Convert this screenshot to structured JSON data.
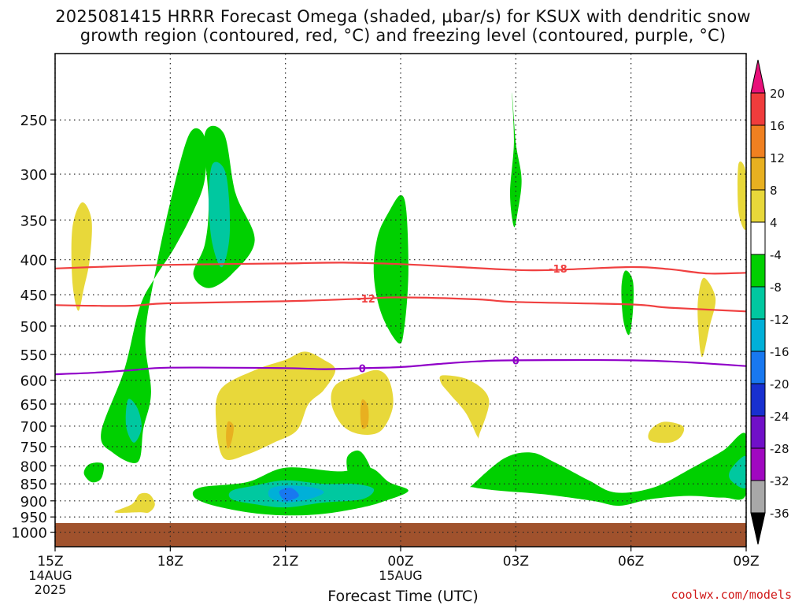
{
  "title_line1": "2025081415 HRRR Forecast Omega (shaded, μbar/s) for KSUX with dendritic snow",
  "title_line2": "growth region (contoured, red, °C) and freezing level (contoured, purple, °C)",
  "credit": "coolwx.com/models",
  "chart_data": {
    "type": "heatmap",
    "xlabel": "Forecast Time (UTC)",
    "x_ticks": [
      {
        "x": 15,
        "label": "15Z",
        "sub": [
          "14AUG",
          "2025"
        ]
      },
      {
        "x": 18,
        "label": "18Z",
        "sub": []
      },
      {
        "x": 21,
        "label": "21Z",
        "sub": []
      },
      {
        "x": 24,
        "label": "00Z",
        "sub": [
          "15AUG"
        ]
      },
      {
        "x": 27,
        "label": "03Z",
        "sub": []
      },
      {
        "x": 30,
        "label": "06Z",
        "sub": []
      },
      {
        "x": 33,
        "label": "09Z",
        "sub": []
      }
    ],
    "xlim": [
      15,
      33
    ],
    "y_ticks": [
      250,
      300,
      350,
      400,
      450,
      500,
      550,
      600,
      650,
      700,
      750,
      800,
      850,
      900,
      950,
      1000
    ],
    "ylim": [
      200,
      1050
    ],
    "y_scale": "log-pressure",
    "grid": true,
    "colorbar": {
      "labels": [
        "20",
        "16",
        "12",
        "8",
        "4",
        "-4",
        "-8",
        "-12",
        "-16",
        "-20",
        "-24",
        "-28",
        "-32",
        "-36"
      ],
      "colors": [
        "#e8107a",
        "#f03c3c",
        "#f08020",
        "#e8b020",
        "#e8d83a",
        "#ffffff",
        "#00d000",
        "#00c8a0",
        "#00b0d8",
        "#1878f0",
        "#1830d0",
        "#7010c8",
        "#a008c0",
        "#a8a8a8",
        "#000000"
      ]
    },
    "contours": [
      {
        "label": "-18",
        "color": "#f04040",
        "points": [
          [
            15,
            412
          ],
          [
            16,
            410
          ],
          [
            18,
            407
          ],
          [
            21,
            405
          ],
          [
            22.5,
            404
          ],
          [
            24,
            406
          ],
          [
            25.5,
            410
          ],
          [
            27,
            414
          ],
          [
            28,
            414
          ],
          [
            30,
            410
          ],
          [
            31,
            413
          ],
          [
            32,
            419
          ],
          [
            33,
            418
          ]
        ]
      },
      {
        "label": "-12",
        "color": "#f04040",
        "points": [
          [
            15,
            466
          ],
          [
            16,
            467
          ],
          [
            17,
            467
          ],
          [
            18,
            463
          ],
          [
            21,
            460
          ],
          [
            23,
            456
          ],
          [
            24,
            454
          ],
          [
            26,
            457
          ],
          [
            27,
            461
          ],
          [
            30,
            465
          ],
          [
            31,
            470
          ],
          [
            33,
            476
          ]
        ]
      },
      {
        "label": "0",
        "color": "#9000c8",
        "points": [
          [
            15,
            588
          ],
          [
            16,
            585
          ],
          [
            17,
            580
          ],
          [
            18,
            575
          ],
          [
            21,
            576
          ],
          [
            22,
            578
          ],
          [
            23,
            576
          ],
          [
            24,
            574
          ],
          [
            25,
            568
          ],
          [
            26,
            563
          ],
          [
            27,
            561
          ],
          [
            30,
            561
          ],
          [
            31.5,
            565
          ],
          [
            33,
            572
          ]
        ]
      }
    ],
    "contour_labels": [
      {
        "text": "-18",
        "x": 28.1,
        "y": 412
      },
      {
        "text": "-12",
        "x": 23.1,
        "y": 456
      },
      {
        "text": "0",
        "x": 23.0,
        "y": 576
      },
      {
        "text": "0",
        "x": 27.0,
        "y": 561
      }
    ],
    "omega_regions": [
      {
        "value": -6,
        "points": [
          [
            18.5,
            262
          ],
          [
            18,
            330
          ],
          [
            17.6,
            420
          ],
          [
            17.35,
            520
          ],
          [
            17.5,
            625
          ],
          [
            17.3,
            705
          ],
          [
            17.15,
            790
          ],
          [
            16.5,
            765
          ],
          [
            16.2,
            715
          ],
          [
            16.8,
            580
          ],
          [
            17.2,
            470
          ],
          [
            17.6,
            425
          ],
          [
            18.1,
            385
          ],
          [
            18.6,
            340
          ],
          [
            18.9,
            305
          ],
          [
            18.9,
            265
          ]
        ]
      },
      {
        "value": -6,
        "points": [
          [
            18.9,
            262
          ],
          [
            19.4,
            262
          ],
          [
            19.7,
            320
          ],
          [
            20.2,
            375
          ],
          [
            19.6,
            420
          ],
          [
            19.0,
            440
          ],
          [
            18.6,
            420
          ],
          [
            18.9,
            380
          ],
          [
            19.0,
            330
          ]
        ]
      },
      {
        "value": -10,
        "points": [
          [
            19.1,
            290
          ],
          [
            19.45,
            300
          ],
          [
            19.55,
            365
          ],
          [
            19.35,
            410
          ],
          [
            19.1,
            380
          ],
          [
            19.0,
            330
          ]
        ]
      },
      {
        "value": -10,
        "points": [
          [
            16.9,
            640
          ],
          [
            17.15,
            660
          ],
          [
            17.25,
            705
          ],
          [
            17.05,
            740
          ],
          [
            16.85,
            700
          ]
        ]
      },
      {
        "value": -6,
        "points": [
          [
            15.9,
            795
          ],
          [
            16.25,
            795
          ],
          [
            16.2,
            835
          ],
          [
            15.95,
            845
          ],
          [
            15.75,
            820
          ]
        ]
      },
      {
        "value": -6,
        "points": [
          [
            24.0,
            322
          ],
          [
            24.15,
            340
          ],
          [
            24.2,
            420
          ],
          [
            24.1,
            500
          ],
          [
            23.95,
            530
          ],
          [
            23.5,
            480
          ],
          [
            23.3,
            420
          ],
          [
            23.4,
            370
          ],
          [
            23.7,
            340
          ]
        ]
      },
      {
        "value": -6,
        "points": [
          [
            22.9,
            760
          ],
          [
            23.15,
            790
          ],
          [
            23.3,
            845
          ],
          [
            23.0,
            865
          ],
          [
            22.7,
            845
          ],
          [
            22.6,
            780
          ]
        ]
      },
      {
        "value": -6,
        "points": [
          [
            26.9,
            228
          ],
          [
            27.0,
            270
          ],
          [
            27.15,
            305
          ],
          [
            27.05,
            340
          ],
          [
            26.95,
            358
          ],
          [
            26.85,
            320
          ],
          [
            26.95,
            270
          ]
        ]
      },
      {
        "value": -6,
        "points": [
          [
            29.85,
            415
          ],
          [
            30.05,
            430
          ],
          [
            30.05,
            475
          ],
          [
            29.95,
            515
          ],
          [
            29.8,
            490
          ],
          [
            29.75,
            440
          ]
        ]
      },
      {
        "value": -6,
        "points": [
          [
            18.8,
            860
          ],
          [
            20.0,
            845
          ],
          [
            21.0,
            805
          ],
          [
            22.4,
            815
          ],
          [
            23.2,
            805
          ],
          [
            23.7,
            845
          ],
          [
            24.2,
            870
          ],
          [
            23.6,
            900
          ],
          [
            23.0,
            920
          ],
          [
            22.0,
            940
          ],
          [
            21.0,
            945
          ],
          [
            20.0,
            935
          ],
          [
            19.0,
            910
          ],
          [
            18.6,
            885
          ]
        ]
      },
      {
        "value": -10,
        "points": [
          [
            19.6,
            870
          ],
          [
            20.2,
            855
          ],
          [
            21.0,
            840
          ],
          [
            22.0,
            850
          ],
          [
            22.8,
            850
          ],
          [
            23.3,
            865
          ],
          [
            23.0,
            895
          ],
          [
            22.0,
            905
          ],
          [
            21.0,
            920
          ],
          [
            20.2,
            910
          ],
          [
            19.6,
            895
          ]
        ]
      },
      {
        "value": -14,
        "points": [
          [
            20.6,
            865
          ],
          [
            21.0,
            855
          ],
          [
            21.7,
            860
          ],
          [
            22.0,
            875
          ],
          [
            21.6,
            895
          ],
          [
            21.0,
            905
          ],
          [
            20.6,
            890
          ]
        ]
      },
      {
        "value": -18,
        "points": [
          [
            20.85,
            870
          ],
          [
            21.15,
            862
          ],
          [
            21.35,
            885
          ],
          [
            21.05,
            900
          ],
          [
            20.9,
            890
          ]
        ]
      },
      {
        "value": -6,
        "points": [
          [
            25.9,
            850
          ],
          [
            26.7,
            780
          ],
          [
            27.4,
            765
          ],
          [
            28.0,
            790
          ],
          [
            28.9,
            840
          ],
          [
            29.6,
            875
          ],
          [
            30.6,
            860
          ],
          [
            31.6,
            805
          ],
          [
            32.4,
            760
          ],
          [
            33.0,
            720
          ],
          [
            33.0,
            880
          ],
          [
            32.4,
            890
          ],
          [
            31.5,
            885
          ],
          [
            30.5,
            895
          ],
          [
            29.7,
            915
          ],
          [
            29.0,
            900
          ],
          [
            27.7,
            880
          ],
          [
            26.6,
            870
          ],
          [
            25.9,
            860
          ]
        ]
      },
      {
        "value": -10,
        "points": [
          [
            32.6,
            810
          ],
          [
            33.0,
            775
          ],
          [
            33.0,
            860
          ],
          [
            32.6,
            840
          ]
        ]
      },
      {
        "value": 5,
        "points": [
          [
            15.7,
            330
          ],
          [
            15.95,
            350
          ],
          [
            15.9,
            400
          ],
          [
            15.75,
            440
          ],
          [
            15.6,
            475
          ],
          [
            15.45,
            430
          ],
          [
            15.45,
            360
          ]
        ]
      },
      {
        "value": 5,
        "points": [
          [
            17.2,
            880
          ],
          [
            17.45,
            880
          ],
          [
            17.6,
            910
          ],
          [
            17.45,
            935
          ],
          [
            17.2,
            935
          ],
          [
            16.55,
            935
          ],
          [
            17.0,
            910
          ]
        ]
      },
      {
        "value": 5,
        "points": [
          [
            21.5,
            545
          ],
          [
            21.0,
            560
          ],
          [
            20.2,
            580
          ],
          [
            19.3,
            620
          ],
          [
            19.2,
            700
          ],
          [
            19.4,
            780
          ],
          [
            20.0,
            770
          ],
          [
            20.7,
            740
          ],
          [
            21.3,
            710
          ],
          [
            21.6,
            650
          ],
          [
            22.0,
            620
          ],
          [
            22.3,
            580
          ],
          [
            22.0,
            560
          ]
        ]
      },
      {
        "value": 5,
        "points": [
          [
            22.9,
            590
          ],
          [
            23.4,
            580
          ],
          [
            23.7,
            600
          ],
          [
            23.8,
            655
          ],
          [
            23.5,
            710
          ],
          [
            23.0,
            720
          ],
          [
            22.5,
            700
          ],
          [
            22.2,
            650
          ],
          [
            22.3,
            610
          ]
        ]
      },
      {
        "value": 5,
        "points": [
          [
            25.1,
            590
          ],
          [
            25.8,
            600
          ],
          [
            26.3,
            640
          ],
          [
            26.05,
            720
          ],
          [
            26.0,
            725
          ],
          [
            25.7,
            670
          ],
          [
            25.3,
            630
          ],
          [
            25.05,
            605
          ]
        ]
      },
      {
        "value": 5,
        "points": [
          [
            31.9,
            425
          ],
          [
            32.2,
            455
          ],
          [
            32.05,
            500
          ],
          [
            31.85,
            555
          ],
          [
            31.75,
            500
          ],
          [
            31.75,
            455
          ]
        ]
      },
      {
        "value": 5,
        "points": [
          [
            33.0,
            300
          ],
          [
            32.8,
            290
          ],
          [
            32.8,
            340
          ],
          [
            33.0,
            360
          ]
        ]
      },
      {
        "value": 5,
        "points": [
          [
            30.85,
            690
          ],
          [
            31.35,
            700
          ],
          [
            31.3,
            725
          ],
          [
            31.0,
            740
          ],
          [
            30.5,
            735
          ],
          [
            30.5,
            710
          ]
        ]
      },
      {
        "value": 9,
        "points": [
          [
            19.5,
            690
          ],
          [
            19.65,
            700
          ],
          [
            19.6,
            735
          ],
          [
            19.5,
            755
          ],
          [
            19.45,
            725
          ]
        ]
      },
      {
        "value": 9,
        "points": [
          [
            23.0,
            640
          ],
          [
            23.15,
            655
          ],
          [
            23.15,
            695
          ],
          [
            23.0,
            705
          ],
          [
            22.95,
            670
          ]
        ]
      }
    ]
  }
}
